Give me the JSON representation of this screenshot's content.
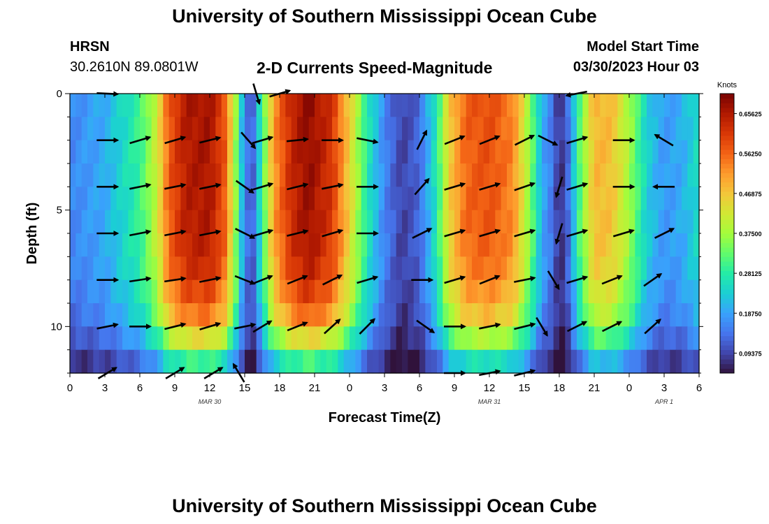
{
  "header": {
    "title": "University of Southern Mississippi Ocean Cube",
    "station": "HRSN",
    "coords": "30.2610N  89.0801W",
    "subtitle": "2-D Currents Speed-Magnitude",
    "model_start_label": "Model Start Time",
    "model_start_value": "03/30/2023 Hour 03"
  },
  "footer": {
    "title": "University of Southern Mississippi Ocean Cube"
  },
  "colors": {
    "ramp": [
      "#30123b",
      "#4145ab",
      "#4675ed",
      "#39a2fc",
      "#1bcfd4",
      "#24eca6",
      "#61fc6c",
      "#a4fc3b",
      "#d1e834",
      "#f3c63a",
      "#fe9b2d",
      "#f36315",
      "#d93806",
      "#b11901",
      "#7a0402"
    ]
  },
  "chart_data": {
    "type": "heatmap",
    "title": "2-D Currents Speed-Magnitude",
    "xlabel": "Forecast Time(Z)",
    "ylabel": "Depth (ft)",
    "xlim": [
      0,
      54
    ],
    "ylim": [
      12,
      0
    ],
    "x_ticks": [
      {
        "value": 0,
        "label": "0"
      },
      {
        "value": 3,
        "label": "3"
      },
      {
        "value": 6,
        "label": "6"
      },
      {
        "value": 9,
        "label": "9"
      },
      {
        "value": 12,
        "label": "12"
      },
      {
        "value": 15,
        "label": "15"
      },
      {
        "value": 18,
        "label": "18"
      },
      {
        "value": 21,
        "label": "21"
      },
      {
        "value": 24,
        "label": "0"
      },
      {
        "value": 27,
        "label": "3"
      },
      {
        "value": 30,
        "label": "6"
      },
      {
        "value": 33,
        "label": "9"
      },
      {
        "value": 36,
        "label": "12"
      },
      {
        "value": 39,
        "label": "15"
      },
      {
        "value": 42,
        "label": "18"
      },
      {
        "value": 45,
        "label": "21"
      },
      {
        "value": 48,
        "label": "0"
      },
      {
        "value": 51,
        "label": "3"
      },
      {
        "value": 54,
        "label": "6"
      }
    ],
    "y_ticks": [
      {
        "value": 0,
        "label": "0"
      },
      {
        "value": 5,
        "label": "5"
      },
      {
        "value": 10,
        "label": "10"
      }
    ],
    "date_labels": [
      {
        "value": 12,
        "label": "MAR 30"
      },
      {
        "value": 36,
        "label": "MAR 31"
      },
      {
        "value": 51,
        "label": "APR 1"
      }
    ],
    "colorbar": {
      "label": "Knots",
      "min": 0.046875,
      "max": 0.703125,
      "ticks": [
        0.09375,
        0.1875,
        0.28125,
        0.375,
        0.46875,
        0.5625,
        0.65625
      ],
      "tick_labels": [
        "0.09375",
        "0.18750",
        "0.28125",
        "0.37500",
        "0.46875",
        "0.56250",
        "0.65625"
      ]
    },
    "speed_profile_surface": [
      {
        "t": 0,
        "v": 0.16
      },
      {
        "t": 3,
        "v": 0.2
      },
      {
        "t": 6,
        "v": 0.3
      },
      {
        "t": 7.5,
        "v": 0.42
      },
      {
        "t": 8.5,
        "v": 0.58
      },
      {
        "t": 10,
        "v": 0.66
      },
      {
        "t": 12,
        "v": 0.67
      },
      {
        "t": 13.3,
        "v": 0.58
      },
      {
        "t": 14.3,
        "v": 0.35
      },
      {
        "t": 15,
        "v": 0.15
      },
      {
        "t": 15.7,
        "v": 0.12
      },
      {
        "t": 16.5,
        "v": 0.3
      },
      {
        "t": 17.5,
        "v": 0.52
      },
      {
        "t": 19,
        "v": 0.64
      },
      {
        "t": 20.5,
        "v": 0.69
      },
      {
        "t": 22.5,
        "v": 0.62
      },
      {
        "t": 24,
        "v": 0.46
      },
      {
        "t": 25.5,
        "v": 0.28
      },
      {
        "t": 27,
        "v": 0.16
      },
      {
        "t": 28.5,
        "v": 0.09
      },
      {
        "t": 30,
        "v": 0.13
      },
      {
        "t": 31.5,
        "v": 0.28
      },
      {
        "t": 32.5,
        "v": 0.46
      },
      {
        "t": 34,
        "v": 0.57
      },
      {
        "t": 36,
        "v": 0.59
      },
      {
        "t": 38,
        "v": 0.54
      },
      {
        "t": 39.5,
        "v": 0.36
      },
      {
        "t": 40.5,
        "v": 0.2
      },
      {
        "t": 41.5,
        "v": 0.14
      },
      {
        "t": 42,
        "v": 0.06
      },
      {
        "t": 42.8,
        "v": 0.14
      },
      {
        "t": 43.8,
        "v": 0.33
      },
      {
        "t": 45,
        "v": 0.49
      },
      {
        "t": 46.5,
        "v": 0.48
      },
      {
        "t": 48,
        "v": 0.38
      },
      {
        "t": 49.5,
        "v": 0.24
      },
      {
        "t": 51,
        "v": 0.18
      },
      {
        "t": 52.5,
        "v": 0.2
      },
      {
        "t": 54,
        "v": 0.26
      }
    ],
    "depth_decay": [
      {
        "d": 0,
        "f": 1.0
      },
      {
        "d": 6,
        "f": 0.98
      },
      {
        "d": 8,
        "f": 0.93
      },
      {
        "d": 9.5,
        "f": 0.82
      },
      {
        "d": 10.5,
        "f": 0.66
      },
      {
        "d": 11.5,
        "f": 0.45
      },
      {
        "d": 12,
        "f": 0.38
      }
    ],
    "vectors": [
      {
        "t": 3.2,
        "d": 0,
        "dx": 1,
        "dy": 0.05
      },
      {
        "t": 16,
        "d": 0,
        "dx": 0.3,
        "dy": 1
      },
      {
        "t": 18,
        "d": 0,
        "dx": 1,
        "dy": -0.3
      },
      {
        "t": 43.5,
        "d": 0,
        "dx": -1,
        "dy": 0.2
      },
      {
        "t": 3.2,
        "d": 2,
        "dx": 1,
        "dy": 0
      },
      {
        "t": 6,
        "d": 2,
        "dx": 1,
        "dy": -0.3
      },
      {
        "t": 9,
        "d": 2,
        "dx": 1,
        "dy": -0.3
      },
      {
        "t": 12,
        "d": 2,
        "dx": 1,
        "dy": -0.25
      },
      {
        "t": 15.3,
        "d": 2,
        "dx": 0.7,
        "dy": 0.8
      },
      {
        "t": 16.5,
        "d": 2,
        "dx": 1,
        "dy": -0.3
      },
      {
        "t": 19.5,
        "d": 2,
        "dx": 1,
        "dy": -0.1
      },
      {
        "t": 22.5,
        "d": 2,
        "dx": 1,
        "dy": 0
      },
      {
        "t": 25.5,
        "d": 2,
        "dx": 1,
        "dy": 0.2
      },
      {
        "t": 30.2,
        "d": 2,
        "dx": 0.5,
        "dy": -1
      },
      {
        "t": 33,
        "d": 2,
        "dx": 1,
        "dy": -0.4
      },
      {
        "t": 36,
        "d": 2,
        "dx": 1,
        "dy": -0.4
      },
      {
        "t": 39,
        "d": 2,
        "dx": 1,
        "dy": -0.5
      },
      {
        "t": 41,
        "d": 2,
        "dx": 1,
        "dy": 0.5
      },
      {
        "t": 43.5,
        "d": 2,
        "dx": 1,
        "dy": -0.3
      },
      {
        "t": 47.5,
        "d": 2,
        "dx": 1,
        "dy": 0
      },
      {
        "t": 51,
        "d": 2,
        "dx": -1,
        "dy": -0.6
      },
      {
        "t": 3.2,
        "d": 4,
        "dx": 1,
        "dy": 0
      },
      {
        "t": 6,
        "d": 4,
        "dx": 1,
        "dy": -0.2
      },
      {
        "t": 9,
        "d": 4,
        "dx": 1,
        "dy": -0.2
      },
      {
        "t": 12,
        "d": 4,
        "dx": 1,
        "dy": -0.2
      },
      {
        "t": 15,
        "d": 4,
        "dx": 1,
        "dy": 0.7
      },
      {
        "t": 16.5,
        "d": 4,
        "dx": 1,
        "dy": -0.3
      },
      {
        "t": 19.5,
        "d": 4,
        "dx": 1,
        "dy": -0.25
      },
      {
        "t": 22.5,
        "d": 4,
        "dx": 1,
        "dy": -0.2
      },
      {
        "t": 25.5,
        "d": 4,
        "dx": 1,
        "dy": 0
      },
      {
        "t": 30.2,
        "d": 4,
        "dx": 0.8,
        "dy": -0.9
      },
      {
        "t": 33,
        "d": 4,
        "dx": 1,
        "dy": -0.3
      },
      {
        "t": 36,
        "d": 4,
        "dx": 1,
        "dy": -0.3
      },
      {
        "t": 39,
        "d": 4,
        "dx": 1,
        "dy": -0.35
      },
      {
        "t": 42,
        "d": 4,
        "dx": -0.3,
        "dy": 1
      },
      {
        "t": 43.5,
        "d": 4,
        "dx": 1,
        "dy": -0.3
      },
      {
        "t": 47.5,
        "d": 4,
        "dx": 1,
        "dy": 0
      },
      {
        "t": 51,
        "d": 4,
        "dx": -1,
        "dy": 0
      },
      {
        "t": 3.2,
        "d": 6,
        "dx": 1,
        "dy": 0
      },
      {
        "t": 6,
        "d": 6,
        "dx": 1,
        "dy": -0.2
      },
      {
        "t": 9,
        "d": 6,
        "dx": 1,
        "dy": -0.2
      },
      {
        "t": 12,
        "d": 6,
        "dx": 1,
        "dy": -0.2
      },
      {
        "t": 15,
        "d": 6,
        "dx": 1,
        "dy": 0.5
      },
      {
        "t": 16.5,
        "d": 6,
        "dx": 1,
        "dy": -0.3
      },
      {
        "t": 19.5,
        "d": 6,
        "dx": 1,
        "dy": -0.25
      },
      {
        "t": 22.5,
        "d": 6,
        "dx": 1,
        "dy": -0.3
      },
      {
        "t": 25.5,
        "d": 6,
        "dx": 1,
        "dy": 0
      },
      {
        "t": 30.2,
        "d": 6,
        "dx": 1,
        "dy": -0.5
      },
      {
        "t": 33,
        "d": 6,
        "dx": 1,
        "dy": -0.3
      },
      {
        "t": 36,
        "d": 6,
        "dx": 1,
        "dy": -0.3
      },
      {
        "t": 39,
        "d": 6,
        "dx": 1,
        "dy": -0.3
      },
      {
        "t": 42,
        "d": 6,
        "dx": -0.3,
        "dy": 1
      },
      {
        "t": 43.5,
        "d": 6,
        "dx": 1,
        "dy": -0.3
      },
      {
        "t": 47.5,
        "d": 6,
        "dx": 1,
        "dy": -0.3
      },
      {
        "t": 51,
        "d": 6,
        "dx": 1,
        "dy": -0.5
      },
      {
        "t": 3.2,
        "d": 8,
        "dx": 1,
        "dy": 0
      },
      {
        "t": 6,
        "d": 8,
        "dx": 1,
        "dy": -0.15
      },
      {
        "t": 9,
        "d": 8,
        "dx": 1,
        "dy": -0.15
      },
      {
        "t": 12,
        "d": 8,
        "dx": 1,
        "dy": -0.2
      },
      {
        "t": 15,
        "d": 8,
        "dx": 1,
        "dy": 0.4
      },
      {
        "t": 16.5,
        "d": 8,
        "dx": 1,
        "dy": -0.4
      },
      {
        "t": 19.5,
        "d": 8,
        "dx": 1,
        "dy": -0.4
      },
      {
        "t": 22.5,
        "d": 8,
        "dx": 1,
        "dy": -0.5
      },
      {
        "t": 25.5,
        "d": 8,
        "dx": 1,
        "dy": -0.3
      },
      {
        "t": 30.2,
        "d": 8,
        "dx": 1,
        "dy": 0
      },
      {
        "t": 33,
        "d": 8,
        "dx": 1,
        "dy": -0.3
      },
      {
        "t": 36,
        "d": 8,
        "dx": 1,
        "dy": -0.4
      },
      {
        "t": 39,
        "d": 8,
        "dx": 1,
        "dy": -0.2
      },
      {
        "t": 41.5,
        "d": 8,
        "dx": 0.6,
        "dy": 1
      },
      {
        "t": 43.5,
        "d": 8,
        "dx": 1,
        "dy": -0.3
      },
      {
        "t": 46.5,
        "d": 8,
        "dx": 1,
        "dy": -0.4
      },
      {
        "t": 50,
        "d": 8,
        "dx": 1,
        "dy": -0.7
      },
      {
        "t": 3.2,
        "d": 10,
        "dx": 1,
        "dy": -0.2
      },
      {
        "t": 6,
        "d": 10,
        "dx": 1,
        "dy": 0
      },
      {
        "t": 9,
        "d": 10,
        "dx": 1,
        "dy": -0.25
      },
      {
        "t": 12,
        "d": 10,
        "dx": 1,
        "dy": -0.3
      },
      {
        "t": 15,
        "d": 10,
        "dx": 1,
        "dy": -0.2
      },
      {
        "t": 16.5,
        "d": 10,
        "dx": 1,
        "dy": -0.6
      },
      {
        "t": 19.5,
        "d": 10,
        "dx": 1,
        "dy": -0.4
      },
      {
        "t": 22.5,
        "d": 10,
        "dx": 1,
        "dy": -0.9
      },
      {
        "t": 25.5,
        "d": 10,
        "dx": 0.9,
        "dy": -0.9
      },
      {
        "t": 30.5,
        "d": 10,
        "dx": 1,
        "dy": 0.7
      },
      {
        "t": 33,
        "d": 10,
        "dx": 1,
        "dy": 0
      },
      {
        "t": 36,
        "d": 10,
        "dx": 1,
        "dy": -0.2
      },
      {
        "t": 39,
        "d": 10,
        "dx": 1,
        "dy": -0.25
      },
      {
        "t": 40.5,
        "d": 10,
        "dx": 0.6,
        "dy": 1
      },
      {
        "t": 43.5,
        "d": 10,
        "dx": 1,
        "dy": -0.5
      },
      {
        "t": 46.5,
        "d": 10,
        "dx": 1,
        "dy": -0.5
      },
      {
        "t": 50,
        "d": 10,
        "dx": 1,
        "dy": -0.9
      },
      {
        "t": 3.2,
        "d": 12,
        "dx": 1,
        "dy": -0.6
      },
      {
        "t": 9,
        "d": 12,
        "dx": 1,
        "dy": -0.6
      },
      {
        "t": 12.3,
        "d": 12,
        "dx": 1,
        "dy": -0.6
      },
      {
        "t": 14.5,
        "d": 12,
        "dx": -0.6,
        "dy": -1
      },
      {
        "t": 33,
        "d": 12,
        "dx": 1,
        "dy": 0
      },
      {
        "t": 36,
        "d": 12,
        "dx": 1,
        "dy": -0.2
      },
      {
        "t": 39,
        "d": 12,
        "dx": 1,
        "dy": -0.25
      }
    ]
  }
}
